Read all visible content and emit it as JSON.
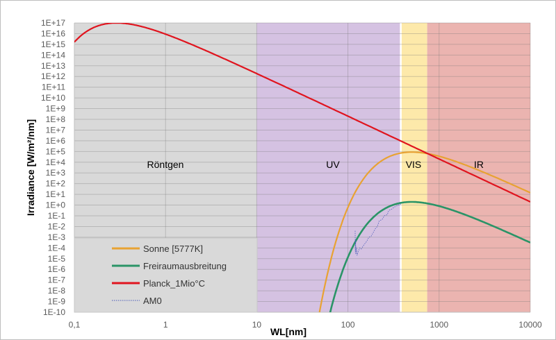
{
  "chart_data": {
    "type": "line",
    "xscale": "log",
    "yscale": "log",
    "xlabel": "WL[nm]",
    "ylabel": "Irradiance [W/m²/nm]",
    "xlim": [
      0.1,
      10000
    ],
    "ylim_log10": [
      -10,
      17
    ],
    "x_ticks": [
      {
        "value": 0.1,
        "label": "0,1"
      },
      {
        "value": 1,
        "label": "1"
      },
      {
        "value": 10,
        "label": "10"
      },
      {
        "value": 100,
        "label": "100"
      },
      {
        "value": 1000,
        "label": "1000"
      },
      {
        "value": 10000,
        "label": "10000"
      }
    ],
    "y_ticks": [
      "1E+17",
      "1E+16",
      "1E+15",
      "1E+14",
      "1E+13",
      "1E+12",
      "1E+11",
      "1E+10",
      "1E+9",
      "1E+8",
      "1E+7",
      "1E+6",
      "1E+5",
      "1E+4",
      "1E+3",
      "1E+2",
      "1E+1",
      "1E+0",
      "1E-1",
      "1E-2",
      "1E-3",
      "1E-4",
      "1E-5",
      "1E-6",
      "1E-7",
      "1E-8",
      "1E-9",
      "1E-10"
    ],
    "grid": true,
    "regions": [
      {
        "label": "Röntgen",
        "from": 0.1,
        "to": 10,
        "color": "#d9d9d9"
      },
      {
        "label": "UV",
        "from": 10,
        "to": 380,
        "color": "#d5c2e2"
      },
      {
        "label": "VIS",
        "from": 380,
        "to": 740,
        "color": "#fde9aa"
      },
      {
        "label": "IR",
        "from": 740,
        "to": 10000,
        "color": "#ebb4b0"
      }
    ],
    "series": [
      {
        "name": "Sonne [5777K]",
        "color": "#e8a232",
        "width": 2.2,
        "model": {
          "type": "planck",
          "T_K": 5777,
          "log10_offset": 20.6
        }
      },
      {
        "name": "Freiraumausbreitung",
        "color": "#2a9467",
        "width": 2.6,
        "model": {
          "type": "planck",
          "T_K": 5777,
          "log10_offset": 15.95
        }
      },
      {
        "name": "Planck_1Mio°C",
        "color": "#e0141e",
        "width": 2.2,
        "model": {
          "type": "planck",
          "T_K": 10000000,
          "log10_offset": 16.46
        }
      },
      {
        "name": "AM0",
        "color": "#4a5cb8",
        "width": 0.8,
        "dash": "1.5,1.5",
        "points_log10": [
          [
            120,
            -2.4
          ],
          [
            120.5,
            -4.4
          ],
          [
            121.5,
            -3.2
          ],
          [
            122,
            -4.6
          ],
          [
            124,
            -3.9
          ],
          [
            126,
            -4.7
          ],
          [
            130,
            -4.3
          ],
          [
            135,
            -4.0
          ],
          [
            140,
            -4.1
          ],
          [
            150,
            -3.7
          ],
          [
            160,
            -3.4
          ],
          [
            170,
            -3.0
          ],
          [
            180,
            -2.9
          ],
          [
            200,
            -2.2
          ],
          [
            210,
            -2.0
          ],
          [
            220,
            -1.5
          ],
          [
            240,
            -1.3
          ],
          [
            250,
            -1.0
          ],
          [
            270,
            -0.9
          ],
          [
            280,
            -0.5
          ],
          [
            300,
            -0.4
          ],
          [
            320,
            -0.2
          ],
          [
            350,
            -0.05
          ],
          [
            380,
            0.1
          ]
        ]
      }
    ],
    "legend": {
      "position": "bottom-left"
    }
  }
}
